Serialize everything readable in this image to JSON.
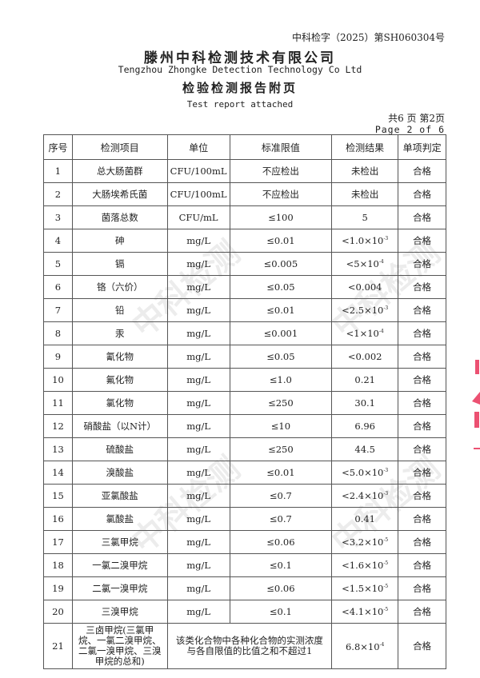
{
  "header": {
    "report_no": "中科检字（2025）第SH060304号",
    "company_cn": "滕州中科检测技术有限公司",
    "company_en": "Tengzhou Zhongke Detection Technology Co Ltd",
    "title_cn": "检验检测报告附页",
    "title_en": "Test report attached",
    "page_cn": "共6 页 第2页",
    "page_en": "Page 2 of 6"
  },
  "watermark": "中科检测",
  "seal_color": "#e8264f",
  "table": {
    "headers": [
      "序号",
      "检测项目",
      "单位",
      "标准限值",
      "检测结果",
      "单项判定"
    ],
    "rows": [
      {
        "no": "1",
        "item": "总大肠菌群",
        "unit": "CFU/100mL",
        "limit": "不应检出",
        "result": "未检出",
        "exp": "",
        "verdict": "合格"
      },
      {
        "no": "2",
        "item": "大肠埃希氏菌",
        "unit": "CFU/100mL",
        "limit": "不应检出",
        "result": "未检出",
        "exp": "",
        "verdict": "合格"
      },
      {
        "no": "3",
        "item": "菌落总数",
        "unit": "CFU/mL",
        "limit": "≤100",
        "result": "5",
        "exp": "",
        "verdict": "合格"
      },
      {
        "no": "4",
        "item": "砷",
        "unit": "mg/L",
        "limit": "≤0.01",
        "result": "<1.0×10",
        "exp": "-3",
        "verdict": "合格"
      },
      {
        "no": "5",
        "item": "镉",
        "unit": "mg/L",
        "limit": "≤0.005",
        "result": "<5×10",
        "exp": "-4",
        "verdict": "合格"
      },
      {
        "no": "6",
        "item": "铬（六价）",
        "unit": "mg/L",
        "limit": "≤0.05",
        "result": "<0.004",
        "exp": "",
        "verdict": "合格"
      },
      {
        "no": "7",
        "item": "铅",
        "unit": "mg/L",
        "limit": "≤0.01",
        "result": "<2.5×10",
        "exp": "-3",
        "verdict": "合格"
      },
      {
        "no": "8",
        "item": "汞",
        "unit": "mg/L",
        "limit": "≤0.001",
        "result": "<1×10",
        "exp": "-4",
        "verdict": "合格"
      },
      {
        "no": "9",
        "item": "氰化物",
        "unit": "mg/L",
        "limit": "≤0.05",
        "result": "<0.002",
        "exp": "",
        "verdict": "合格"
      },
      {
        "no": "10",
        "item": "氟化物",
        "unit": "mg/L",
        "limit": "≤1.0",
        "result": "0.21",
        "exp": "",
        "verdict": "合格"
      },
      {
        "no": "11",
        "item": "氯化物",
        "unit": "mg/L",
        "limit": "≤250",
        "result": "30.1",
        "exp": "",
        "verdict": "合格"
      },
      {
        "no": "12",
        "item": "硝酸盐（以N计）",
        "unit": "mg/L",
        "limit": "≤10",
        "result": "6.96",
        "exp": "",
        "verdict": "合格"
      },
      {
        "no": "13",
        "item": "硫酸盐",
        "unit": "mg/L",
        "limit": "≤250",
        "result": "44.5",
        "exp": "",
        "verdict": "合格"
      },
      {
        "no": "14",
        "item": "溴酸盐",
        "unit": "mg/L",
        "limit": "≤0.01",
        "result": "<5.0×10",
        "exp": "-3",
        "verdict": "合格"
      },
      {
        "no": "15",
        "item": "亚氯酸盐",
        "unit": "mg/L",
        "limit": "≤0.7",
        "result": "<2.4×10",
        "exp": "-3",
        "verdict": "合格"
      },
      {
        "no": "16",
        "item": "氯酸盐",
        "unit": "mg/L",
        "limit": "≤0.7",
        "result": "0.41",
        "exp": "",
        "verdict": "合格"
      },
      {
        "no": "17",
        "item": "三氯甲烷",
        "unit": "mg/L",
        "limit": "≤0.06",
        "result": "<3.2×10",
        "exp": "-5",
        "verdict": "合格"
      },
      {
        "no": "18",
        "item": "一氯二溴甲烷",
        "unit": "mg/L",
        "limit": "≤0.1",
        "result": "<1.6×10",
        "exp": "-5",
        "verdict": "合格"
      },
      {
        "no": "19",
        "item": "二氯一溴甲烷",
        "unit": "mg/L",
        "limit": "≤0.06",
        "result": "<1.5×10",
        "exp": "-5",
        "verdict": "合格"
      },
      {
        "no": "20",
        "item": "三溴甲烷",
        "unit": "mg/L",
        "limit": "≤0.1",
        "result": "<4.1×10",
        "exp": "-5",
        "verdict": "合格"
      }
    ],
    "last_row": {
      "no": "21",
      "item": "三卤甲烷(三氯甲烷、一氯二溴甲烷、二氯一溴甲烷、三溴甲烷的总和)",
      "limit": "该类化合物中各种化合物的实测浓度与各自限值的比值之和不超过1",
      "result": "6.8×10",
      "exp": "-4",
      "verdict": "合格"
    }
  }
}
